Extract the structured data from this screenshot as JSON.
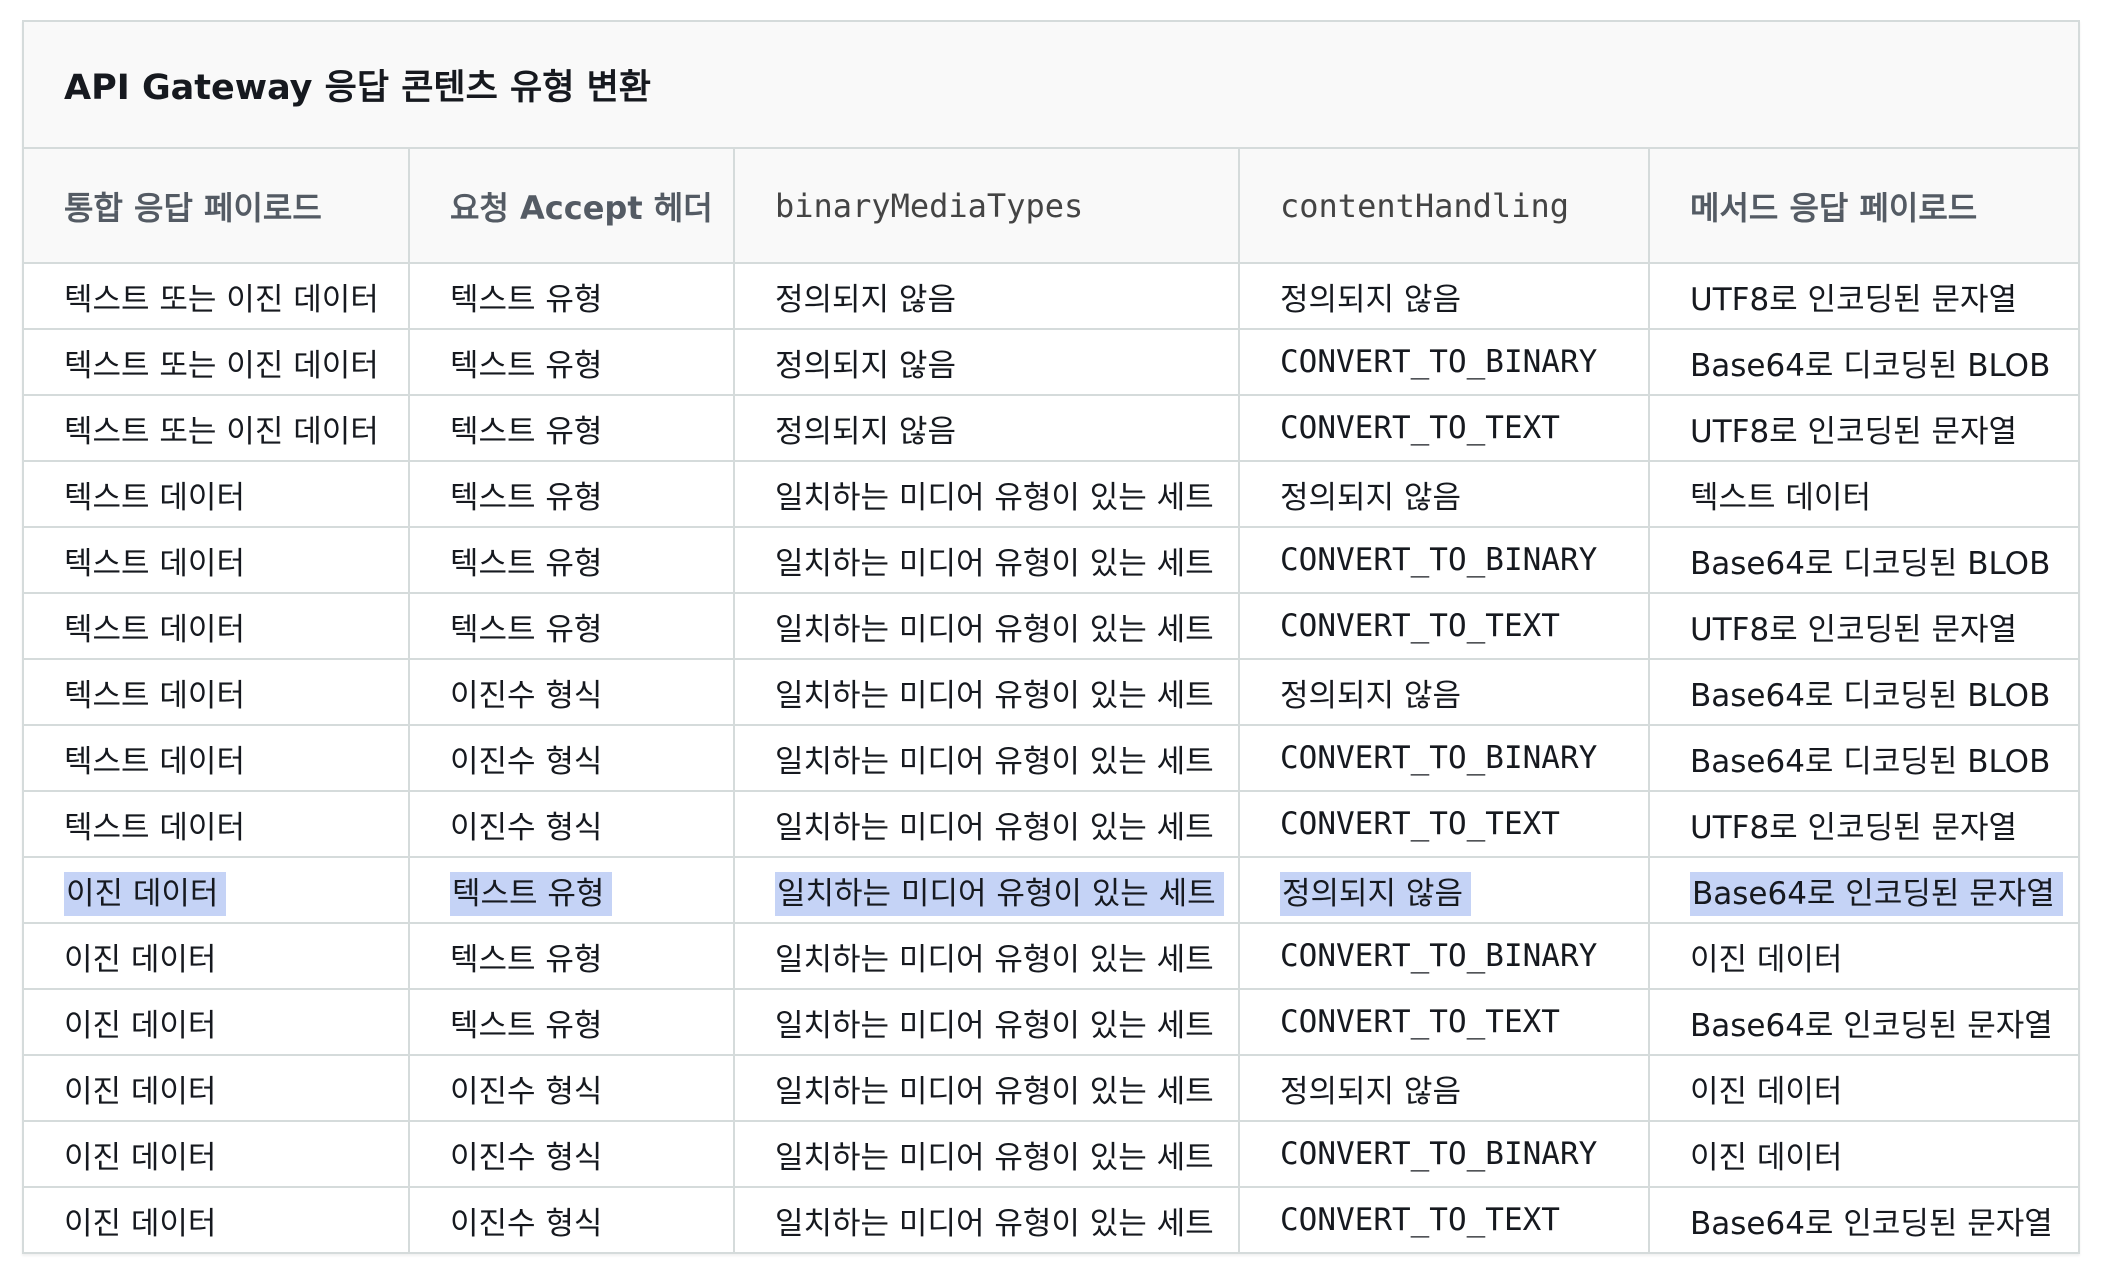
{
  "table": {
    "title": "API Gateway 응답 콘텐츠 유형 변환",
    "headers": [
      "통합 응답 페이로드",
      "요청 Accept 헤더",
      "binaryMediaTypes",
      "contentHandling",
      "메서드 응답 페이로드"
    ],
    "highlight_color": "#c5d3f6",
    "rows": [
      [
        "텍스트 또는 이진 데이터",
        "텍스트 유형",
        "정의되지 않음",
        "정의되지 않음",
        "UTF8로 인코딩된 문자열"
      ],
      [
        "텍스트 또는 이진 데이터",
        "텍스트 유형",
        "정의되지 않음",
        "CONVERT_TO_BINARY",
        "Base64로 디코딩된 BLOB"
      ],
      [
        "텍스트 또는 이진 데이터",
        "텍스트 유형",
        "정의되지 않음",
        "CONVERT_TO_TEXT",
        "UTF8로 인코딩된 문자열"
      ],
      [
        "텍스트 데이터",
        "텍스트 유형",
        "일치하는 미디어 유형이 있는 세트",
        "정의되지 않음",
        "텍스트 데이터"
      ],
      [
        "텍스트 데이터",
        "텍스트 유형",
        "일치하는 미디어 유형이 있는 세트",
        "CONVERT_TO_BINARY",
        "Base64로 디코딩된 BLOB"
      ],
      [
        "텍스트 데이터",
        "텍스트 유형",
        "일치하는 미디어 유형이 있는 세트",
        "CONVERT_TO_TEXT",
        "UTF8로 인코딩된 문자열"
      ],
      [
        "텍스트 데이터",
        "이진수 형식",
        "일치하는 미디어 유형이 있는 세트",
        "정의되지 않음",
        "Base64로 디코딩된 BLOB"
      ],
      [
        "텍스트 데이터",
        "이진수 형식",
        "일치하는 미디어 유형이 있는 세트",
        "CONVERT_TO_BINARY",
        "Base64로 디코딩된 BLOB"
      ],
      [
        "텍스트 데이터",
        "이진수 형식",
        "일치하는 미디어 유형이 있는 세트",
        "CONVERT_TO_TEXT",
        "UTF8로 인코딩된 문자열"
      ],
      [
        "이진 데이터",
        "텍스트 유형",
        "일치하는 미디어 유형이 있는 세트",
        "정의되지 않음",
        "Base64로 인코딩된 문자열"
      ],
      [
        "이진 데이터",
        "텍스트 유형",
        "일치하는 미디어 유형이 있는 세트",
        "CONVERT_TO_BINARY",
        "이진 데이터"
      ],
      [
        "이진 데이터",
        "텍스트 유형",
        "일치하는 미디어 유형이 있는 세트",
        "CONVERT_TO_TEXT",
        "Base64로 인코딩된 문자열"
      ],
      [
        "이진 데이터",
        "이진수 형식",
        "일치하는 미디어 유형이 있는 세트",
        "정의되지 않음",
        "이진 데이터"
      ],
      [
        "이진 데이터",
        "이진수 형식",
        "일치하는 미디어 유형이 있는 세트",
        "CONVERT_TO_BINARY",
        "이진 데이터"
      ],
      [
        "이진 데이터",
        "이진수 형식",
        "일치하는 미디어 유형이 있는 세트",
        "CONVERT_TO_TEXT",
        "Base64로 인코딩된 문자열"
      ]
    ]
  }
}
